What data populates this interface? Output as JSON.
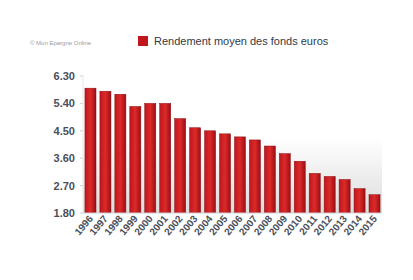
{
  "chart_data": {
    "type": "bar",
    "annotations": [
      "© Mon Epargne Online"
    ],
    "categories": [
      "1996",
      "1997",
      "1998",
      "1999",
      "2000",
      "2001",
      "2002",
      "2003",
      "2004",
      "2005",
      "2006",
      "2007",
      "2008",
      "2009",
      "2010",
      "2011",
      "2012",
      "2013",
      "2014",
      "2015"
    ],
    "series": [
      {
        "name": "Rendement moyen des fonds euros",
        "color": "#c0161c",
        "values": [
          5.9,
          5.8,
          5.7,
          5.3,
          5.4,
          5.4,
          4.9,
          4.6,
          4.5,
          4.4,
          4.3,
          4.2,
          4.0,
          3.75,
          3.5,
          3.1,
          3.0,
          2.9,
          2.6,
          2.4
        ]
      }
    ],
    "ylim": [
      1.8,
      6.3
    ],
    "yticks": [
      {
        "value": 1.8,
        "label": "1.80"
      },
      {
        "value": 2.7,
        "label": "2.70"
      },
      {
        "value": 3.6,
        "label": "3.60"
      },
      {
        "value": 4.5,
        "label": "4.50"
      },
      {
        "value": 5.4,
        "label": "5.40"
      },
      {
        "value": 6.3,
        "label": "6.30"
      }
    ],
    "grid": false,
    "legend": "top"
  }
}
